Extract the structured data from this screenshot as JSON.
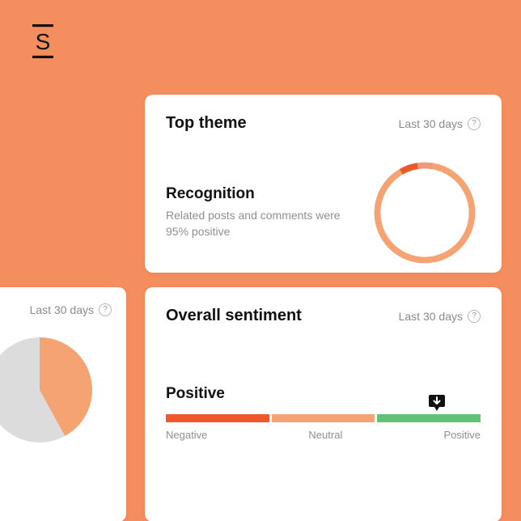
{
  "background_color": "#f58e5f",
  "logo": {
    "name": "logo-s-icon",
    "color": "#111111"
  },
  "top_card": {
    "title": "Top theme",
    "period": "Last 30 days",
    "theme_name": "Recognition",
    "subtitle": "Related posts and comments were 95% positive",
    "donut": {
      "type": "donut",
      "inner_radius_pct": 42,
      "slices": [
        {
          "value": 6,
          "color": "#e85a2a"
        },
        {
          "value": 5,
          "color": "#f2977a"
        },
        {
          "value": 89,
          "color": "#f6a374"
        }
      ],
      "start_angle_deg": -30
    }
  },
  "left_card": {
    "period": "Last 30 days",
    "pie": {
      "type": "pie",
      "slices": [
        {
          "value": 42,
          "color": "#f6a374"
        },
        {
          "value": 58,
          "color": "#dcdcdc"
        }
      ],
      "start_angle_deg": 0
    }
  },
  "bottom_card": {
    "title": "Overall sentiment",
    "period": "Last 30 days",
    "sentiment_label": "Positive",
    "bar": {
      "type": "segmented-bar",
      "segments": [
        {
          "label": "Negative",
          "width_pct": 33.3,
          "color": "#f0582c"
        },
        {
          "label": "Neutral",
          "width_pct": 33.3,
          "color": "#f6a374"
        },
        {
          "label": "Positive",
          "width_pct": 33.3,
          "color": "#63c178"
        }
      ],
      "marker_position_pct": 86,
      "marker_color": "#111111"
    }
  }
}
